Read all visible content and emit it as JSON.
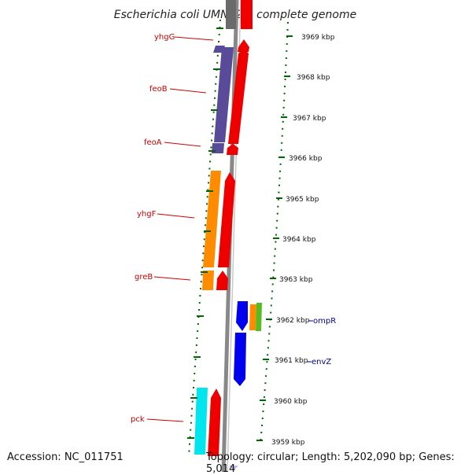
{
  "title": "Escherichia coli UMN026, complete genome",
  "accession": "Accession: NC_011751",
  "summary": "Topology: circular; Length: 5,202,090 bp; Genes: 5,014",
  "colors": {
    "backbone": "#888888",
    "forward_cds": "#ee0000",
    "label_left": "#cc0000",
    "label_right": "#000099",
    "tick_green": "#006600",
    "purple": "#5a4b9a",
    "orange": "#ff8c00",
    "cyan": "#00e5ee",
    "blue": "#0000ee",
    "green": "#55bb22"
  },
  "kbp_scale": [
    {
      "label": "3969 kbp"
    },
    {
      "label": "3968 kbp"
    },
    {
      "label": "3967 kbp"
    },
    {
      "label": "3966 kbp"
    },
    {
      "label": "3965 kbp"
    },
    {
      "label": "3964 kbp"
    },
    {
      "label": "3963 kbp"
    },
    {
      "label": "3962 kbp"
    },
    {
      "label": "3961 kbp"
    },
    {
      "label": "3960 kbp"
    },
    {
      "label": "3959 kbp"
    }
  ],
  "gene_labels_left": [
    "yhgG",
    "feoB",
    "feoA",
    "yhgF",
    "greB",
    "pck"
  ],
  "gene_labels_right": [
    "ompR",
    "envZ"
  ]
}
